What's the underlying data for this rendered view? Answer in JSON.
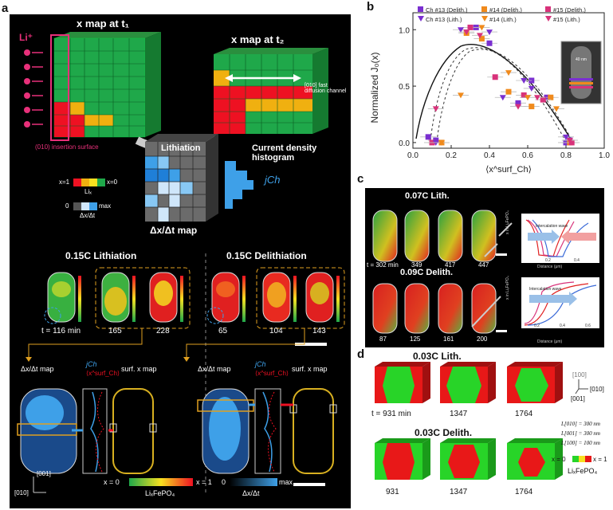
{
  "panel_labels": {
    "a": "a",
    "b": "b",
    "c": "c",
    "d": "d"
  },
  "panel_a": {
    "li_label": "Li⁺",
    "map_t1_title": "x map at t₁",
    "map_t2_title": "x map at t₂",
    "fast_channel": "[010] fast diffusion channel",
    "insertion": "(010) insertion surface",
    "lithiation_arrow": "Lithiation",
    "cd_hist": "Current density histogram",
    "jch": "jCh",
    "dxdt_map_title": "Δx/Δt map",
    "legend_x1": "x=1",
    "legend_x0": "x=0",
    "legend_lix": "Liₓ",
    "legend_zero": "0",
    "legend_max": "max",
    "legend_dxdt": "Δx/Δt",
    "lith_title": "0.15C Lithiation",
    "delith_title": "0.15C Delithiation",
    "lith_times": [
      "t = 116 min",
      "165",
      "228"
    ],
    "delith_times": [
      "65",
      "104",
      "143"
    ],
    "bottom_dxdt": "Δx/Δt map",
    "bottom_jch": "jCh",
    "bottom_xsurf": "⟨x^surf_Ch⟩",
    "bottom_surf": "surf. x map",
    "axis_001": "[001]",
    "axis_010": "[010]",
    "cb_x0": "x = 0",
    "cb_x1": "x = 1",
    "cb_lifepo4": "LiₓFePO₄",
    "cb2_0": "0",
    "cb2_max": "max",
    "cb2_dxdt": "Δx/Δt"
  },
  "panel_b": {
    "legend": [
      {
        "label": "Ch #13 (Delith.)",
        "color": "#7a2fd0",
        "marker": "square"
      },
      {
        "label": "#14 (Delith.)",
        "color": "#f08a1c",
        "marker": "square"
      },
      {
        "label": "#15 (Delith.)",
        "color": "#d8327a",
        "marker": "square"
      },
      {
        "label": "Ch #13 (Lith.)",
        "color": "#7a2fd0",
        "marker": "triangle"
      },
      {
        "label": "#14 (Lith.)",
        "color": "#f08a1c",
        "marker": "triangle"
      },
      {
        "label": "#15 (Lith.)",
        "color": "#d8327a",
        "marker": "triangle"
      }
    ],
    "inset_scale": "40 nm"
  },
  "chart_data": {
    "type": "scatter",
    "xlabel": "⟨x^surf_Ch⟩",
    "ylabel": "Normalized J₀(x)",
    "xlim": [
      0.0,
      1.0
    ],
    "ylim": [
      -0.05,
      1.15
    ],
    "xticks": [
      "0.0",
      "0.2",
      "0.4",
      "0.6",
      "0.8",
      "1.0"
    ],
    "yticks": [
      "0.0",
      "0.5",
      "1.0"
    ],
    "series": [
      {
        "name": "Ch #13 (Delith.)",
        "marker": "square",
        "color": "#7a2fd0",
        "x": [
          0.08,
          0.12,
          0.33,
          0.4,
          0.55,
          0.62,
          0.7,
          0.82,
          0.8
        ],
        "y": [
          0.05,
          0.02,
          1.02,
          0.88,
          0.35,
          0.55,
          0.4,
          0.02,
          0.0
        ]
      },
      {
        "name": "#14 (Delith.)",
        "marker": "square",
        "color": "#f08a1c",
        "x": [
          0.15,
          0.28,
          0.36,
          0.5,
          0.62,
          0.72,
          0.82
        ],
        "y": [
          0.0,
          0.97,
          0.92,
          0.45,
          0.32,
          0.4,
          0.0
        ]
      },
      {
        "name": "#15 (Delith.)",
        "marker": "square",
        "color": "#d8327a",
        "x": [
          0.1,
          0.3,
          0.43,
          0.58,
          0.68,
          0.83
        ],
        "y": [
          0.0,
          1.02,
          0.58,
          0.42,
          0.38,
          0.0
        ]
      },
      {
        "name": "Ch #13 (Lith.)",
        "marker": "triangle",
        "color": "#7a2fd0",
        "x": [
          0.12,
          0.25,
          0.4,
          0.47,
          0.58,
          0.62,
          0.8
        ],
        "y": [
          0.0,
          1.0,
          0.98,
          0.4,
          0.55,
          0.48,
          0.05
        ]
      },
      {
        "name": "#14 (Lith.)",
        "marker": "triangle",
        "color": "#f08a1c",
        "x": [
          0.15,
          0.25,
          0.36,
          0.5,
          0.6,
          0.75
        ],
        "y": [
          0.0,
          0.42,
          1.02,
          0.62,
          0.4,
          0.3
        ]
      },
      {
        "name": "#15 (Lith.)",
        "marker": "triangle",
        "color": "#d8327a",
        "x": [
          0.12,
          0.28,
          0.35,
          0.55,
          0.65,
          0.82
        ],
        "y": [
          0.3,
          0.98,
          0.95,
          0.32,
          0.4,
          0.02
        ]
      }
    ]
  },
  "panel_c": {
    "lith_title": "0.07C Lith.",
    "delith_title": "0.09C Delith.",
    "lith_times": [
      "t = 302 min",
      "349",
      "417",
      "447"
    ],
    "delith_times": [
      "87",
      "125",
      "161",
      "200"
    ],
    "wave_label": "Intercalation wave",
    "ylabel": "x in LiₓFePO₄",
    "xlabel": "Distance (μm)",
    "top_xticks": [
      "0.2",
      "0.4"
    ],
    "bottom_xticks": [
      "0.2",
      "0.4",
      "0.6"
    ]
  },
  "panel_d": {
    "lith_title": "0.03C Lith.",
    "delith_title": "0.03C Delith.",
    "lith_times": [
      "t = 931 min",
      "1347",
      "1764"
    ],
    "delith_times": [
      "931",
      "1347",
      "1764"
    ],
    "axis_100": "[100]",
    "axis_010": "[010]",
    "axis_001": "[001]",
    "dim_010": "L[010] = 300 nm",
    "dim_001": "L[001] = 300 nm",
    "dim_100": "L[100] = 100 nm",
    "cb_x0": "x = 0",
    "cb_x1": "x = 1",
    "cb_lifepo4": "LiₓFePO₄"
  }
}
